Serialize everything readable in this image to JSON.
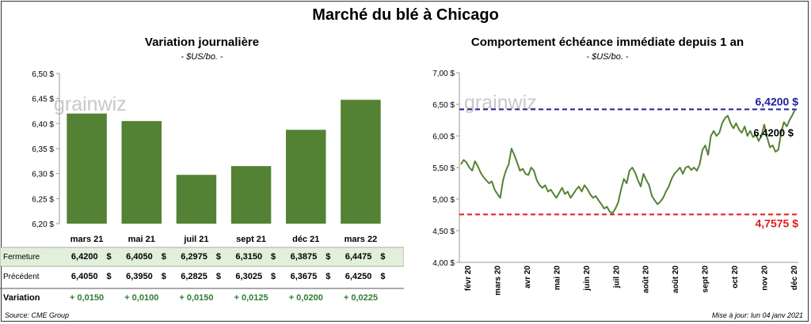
{
  "title": "Marché du blé à Chicago",
  "left_chart": {
    "title": "Variation  journalière",
    "unit": "- $US/bo. -",
    "watermark": "grainwiz",
    "chart_data": {
      "type": "bar",
      "categories": [
        "mars 21",
        "mai 21",
        "juil 21",
        "sept 21",
        "déc 21",
        "mars 22"
      ],
      "values": [
        6.42,
        6.405,
        6.2975,
        6.315,
        6.3875,
        6.4475
      ],
      "ylim": [
        6.2,
        6.5
      ],
      "yticks": [
        6.2,
        6.25,
        6.3,
        6.35,
        6.4,
        6.45,
        6.5
      ],
      "ytick_labels": [
        "6,20 $",
        "6,25 $",
        "6,30 $",
        "6,35 $",
        "6,40 $",
        "6,45 $",
        "6,50 $"
      ],
      "bar_color": "#548235",
      "grid": false
    }
  },
  "table": {
    "rows": [
      {
        "label": "Fermeture",
        "values": [
          "6,4200",
          "6,4050",
          "6,2975",
          "6,3150",
          "6,3875",
          "6,4475"
        ]
      },
      {
        "label": "Précédent",
        "values": [
          "6,4050",
          "6,3950",
          "6,2825",
          "6,3025",
          "6,3675",
          "6,4250"
        ]
      },
      {
        "label": "Variation",
        "values": [
          "+ 0,0150",
          "+ 0,0100",
          "+ 0,0150",
          "+ 0,0125",
          "+ 0,0200",
          "+ 0,0225"
        ]
      }
    ],
    "currency": "$",
    "highlight_color": "#e2efda",
    "variation_color": "#2e7d32"
  },
  "right_chart": {
    "title": "Comportement  échéance immédiate depuis 1 an",
    "unit": "- $US/bo. -",
    "watermark": "grainwiz",
    "chart_data": {
      "type": "line",
      "x_labels": [
        "févr 20",
        "mars 20",
        "avr 20",
        "mai 20",
        "juin 20",
        "juil 20",
        "août 20",
        "août 20",
        "sept 20",
        "oct 20",
        "nov 20",
        "déc 20"
      ],
      "ylim": [
        4.0,
        7.0
      ],
      "yticks": [
        4.0,
        4.5,
        5.0,
        5.5,
        6.0,
        6.5,
        7.0
      ],
      "ytick_labels": [
        "4,00 $",
        "4,50 $",
        "5,00 $",
        "5,50 $",
        "6,00 $",
        "6,50 $",
        "7,00 $"
      ],
      "values": [
        5.55,
        5.62,
        5.58,
        5.5,
        5.45,
        5.6,
        5.52,
        5.42,
        5.35,
        5.3,
        5.25,
        5.28,
        5.15,
        5.08,
        5.02,
        5.3,
        5.45,
        5.55,
        5.8,
        5.7,
        5.58,
        5.45,
        5.48,
        5.4,
        5.38,
        5.5,
        5.45,
        5.3,
        5.22,
        5.18,
        5.22,
        5.12,
        5.15,
        5.08,
        5.02,
        5.1,
        5.18,
        5.08,
        5.12,
        5.02,
        5.08,
        5.15,
        5.2,
        5.12,
        5.22,
        5.16,
        5.08,
        5.02,
        5.05,
        4.98,
        4.92,
        4.85,
        4.88,
        4.8,
        4.78,
        4.85,
        4.95,
        5.15,
        5.32,
        5.25,
        5.45,
        5.5,
        5.42,
        5.3,
        5.2,
        5.4,
        5.3,
        5.22,
        5.05,
        4.98,
        4.92,
        4.96,
        5.02,
        5.12,
        5.2,
        5.32,
        5.4,
        5.45,
        5.5,
        5.4,
        5.5,
        5.52,
        5.46,
        5.5,
        5.45,
        5.55,
        5.78,
        5.85,
        5.7,
        6.0,
        6.08,
        6.0,
        6.05,
        6.2,
        6.28,
        6.32,
        6.2,
        6.12,
        6.2,
        6.1,
        6.05,
        6.15,
        6.0,
        6.08,
        5.98,
        6.02,
        5.92,
        6.0,
        6.18,
        5.98,
        5.82,
        5.85,
        5.75,
        5.78,
        6.05,
        6.22,
        6.15,
        6.25,
        6.33,
        6.42
      ],
      "line_color": "#548235",
      "reference_lines": [
        {
          "value": 6.42,
          "label": "6,4200 $",
          "color": "#1f1f9e"
        },
        {
          "value": 4.7575,
          "label": "4,7575 $",
          "color": "#e31b1b"
        }
      ],
      "last_label": "6,4200 $",
      "grid": false
    }
  },
  "footer": {
    "source": "Source: CME Group",
    "updated": "Mise à jour: lun 04 janv 2021"
  }
}
